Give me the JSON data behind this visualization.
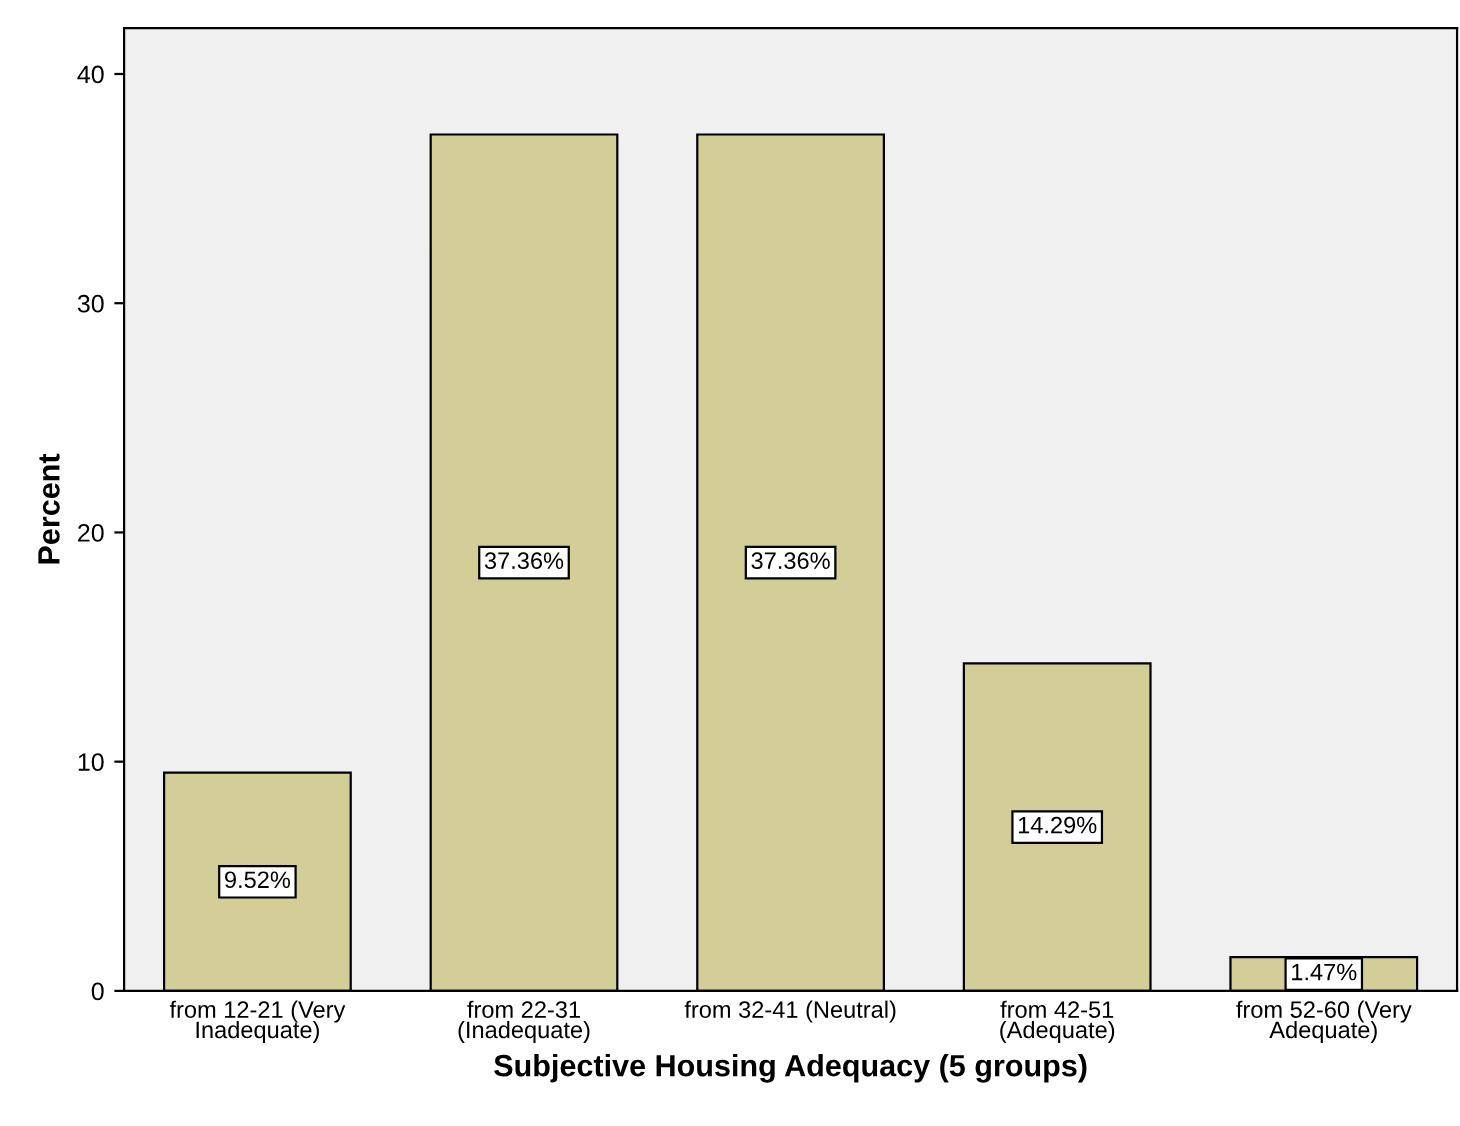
{
  "chart_data": {
    "type": "bar",
    "categories": [
      "from 12-21 (Very\nInadequate)",
      "from 22-31\n(Inadequate)",
      "from 32-41 (Neutral)",
      "from 42-51\n(Adequate)",
      "from 52-60 (Very\nAdequate)"
    ],
    "values": [
      9.52,
      37.36,
      37.36,
      14.29,
      1.47
    ],
    "value_labels": [
      "9.52%",
      "37.36%",
      "37.36%",
      "14.29%",
      "1.47%"
    ],
    "color": "#d3ce97",
    "xlabel": "Subjective Housing Adequacy (5 groups)",
    "ylabel": "Percent",
    "ylim": [
      0,
      42
    ],
    "yticks": [
      0,
      10,
      20,
      30,
      40
    ],
    "grid": false,
    "legend": false
  }
}
